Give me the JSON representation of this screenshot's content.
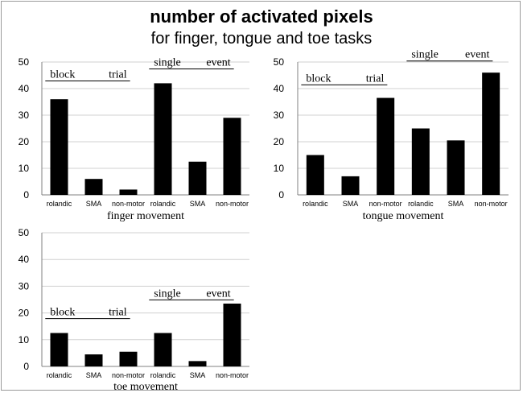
{
  "header": {
    "title": "number of activated pixels",
    "subtitle": "for finger, tongue and toe tasks"
  },
  "colors": {
    "bar": "#000000",
    "grid": "#d0d0d0",
    "axis": "#808080"
  },
  "chart_data": [
    {
      "type": "bar",
      "name": "finger",
      "categories": [
        "rolandic",
        "SMA",
        "non-motor",
        "rolandic",
        "SMA",
        "non-motor"
      ],
      "values": [
        36,
        6,
        2,
        42,
        12.5,
        29
      ],
      "xlabel": "finger movement",
      "ylim": [
        0,
        50
      ],
      "yticks": [
        0,
        10,
        20,
        30,
        40,
        50
      ],
      "grid": true,
      "annotations": [
        {
          "words": [
            "block",
            "trial"
          ],
          "group": "first-three",
          "level": 43.5
        },
        {
          "words": [
            "single",
            "event"
          ],
          "group": "last-three",
          "level": 48
        }
      ]
    },
    {
      "type": "bar",
      "name": "tongue",
      "categories": [
        "rolandic",
        "SMA",
        "non-motor",
        "rolandic",
        "SMA",
        "non-motor"
      ],
      "values": [
        15,
        7,
        36.5,
        25,
        20.5,
        46
      ],
      "xlabel": "tongue movement",
      "ylim": [
        0,
        50
      ],
      "yticks": [
        0,
        10,
        20,
        30,
        40,
        50
      ],
      "grid": true,
      "annotations": [
        {
          "words": [
            "block",
            "trial"
          ],
          "group": "first-three",
          "level": 42
        },
        {
          "words": [
            "single",
            "event"
          ],
          "group": "last-three",
          "level": 51
        }
      ]
    },
    {
      "type": "bar",
      "name": "toe",
      "categories": [
        "rolandic",
        "SMA",
        "non-motor",
        "rolandic",
        "SMA",
        "non-motor"
      ],
      "values": [
        12.5,
        4.5,
        5.5,
        12.5,
        2,
        23.5
      ],
      "xlabel": "toe movement",
      "ylim": [
        0,
        50
      ],
      "yticks": [
        0,
        10,
        20,
        30,
        40,
        50
      ],
      "grid": true,
      "annotations": [
        {
          "words": [
            "block",
            "trial"
          ],
          "group": "first-three",
          "level": 18.5
        },
        {
          "words": [
            "single",
            "event"
          ],
          "group": "last-three",
          "level": 25.5
        }
      ]
    }
  ]
}
